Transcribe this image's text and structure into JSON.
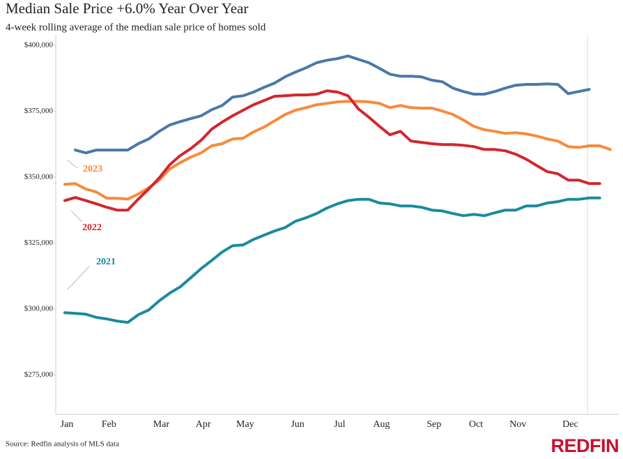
{
  "chart_data": {
    "type": "line",
    "title": "Median Sale Price +6.0% Year Over Year",
    "subtitle": "4-week rolling average of the median sale price of homes sold",
    "source": "Source: Redfin analysis of MLS data",
    "brand": "REDFIN",
    "categories": [
      "Jan",
      null,
      null,
      null,
      "Feb",
      null,
      null,
      null,
      null,
      "Mar",
      null,
      null,
      null,
      "Apr",
      null,
      null,
      null,
      "May",
      null,
      null,
      null,
      null,
      "Jun",
      null,
      null,
      null,
      "Jul",
      null,
      null,
      null,
      "Aug",
      null,
      null,
      null,
      null,
      "Sep",
      null,
      null,
      null,
      "Oct",
      null,
      null,
      null,
      "Nov",
      null,
      null,
      null,
      null,
      "Dec",
      null,
      null,
      null,
      null
    ],
    "ylim": [
      260000,
      404000
    ],
    "yticks": [
      {
        "value": 275000,
        "label": "$275,000"
      },
      {
        "value": 300000,
        "label": "$300,000"
      },
      {
        "value": 325000,
        "label": "$325,000"
      },
      {
        "value": 350000,
        "label": "$350,000"
      },
      {
        "value": 375000,
        "label": "$375,000"
      },
      {
        "value": 400000,
        "label": "$400,000"
      }
    ],
    "grid": false,
    "series": [
      {
        "color": "#4a78a8",
        "values": [
          null,
          360300,
          359200,
          360300,
          360300,
          360300,
          360300,
          362700,
          364500,
          367400,
          369800,
          371100,
          372200,
          373300,
          375600,
          377200,
          380400,
          380900,
          382300,
          384100,
          385700,
          388100,
          389900,
          391500,
          393400,
          394400,
          395000,
          396000,
          394700,
          393400,
          391300,
          389100,
          388300,
          388300,
          388100,
          386800,
          386200,
          383800,
          382500,
          381500,
          381500,
          382500,
          383800,
          384900,
          385200,
          385200,
          385400,
          385200,
          381700,
          382500,
          383300,
          null,
          null
        ]
      },
      {
        "name": "2023",
        "color": "#f78a3c",
        "values": [
          347300,
          347600,
          345500,
          344400,
          342000,
          342000,
          341700,
          343600,
          346000,
          348900,
          353100,
          355500,
          357600,
          359200,
          361900,
          362700,
          364500,
          364800,
          367200,
          369000,
          371400,
          373800,
          375400,
          376400,
          377500,
          378000,
          378600,
          378800,
          378800,
          378600,
          378000,
          376400,
          377200,
          376400,
          376200,
          376200,
          375100,
          373800,
          371700,
          369300,
          368000,
          367400,
          366600,
          366900,
          366400,
          365600,
          364500,
          363700,
          361600,
          361300,
          361900,
          361900,
          360500
        ]
      },
      {
        "name": "2022",
        "color": "#d32630",
        "values": [
          341100,
          342300,
          341100,
          339900,
          338600,
          337500,
          337500,
          341700,
          345500,
          349700,
          354700,
          358200,
          360800,
          364000,
          368200,
          370900,
          373300,
          375400,
          377500,
          379100,
          380700,
          380900,
          381200,
          381200,
          381500,
          382800,
          382300,
          380900,
          375900,
          372700,
          369300,
          366100,
          367400,
          363700,
          363200,
          362700,
          362400,
          362400,
          362100,
          361600,
          360500,
          360500,
          360000,
          358700,
          356800,
          354400,
          352100,
          351300,
          348900,
          348900,
          347600,
          347600,
          null
        ]
      },
      {
        "name": "2021",
        "color": "#1a8a9e",
        "values": [
          298600,
          298300,
          298000,
          296800,
          296200,
          295400,
          294900,
          297800,
          299600,
          303100,
          306000,
          308400,
          311800,
          315300,
          318400,
          321600,
          324000,
          324300,
          326400,
          328000,
          329600,
          330900,
          333300,
          334600,
          336200,
          338300,
          339900,
          341100,
          341600,
          341600,
          340200,
          339900,
          339100,
          339100,
          338600,
          337500,
          337200,
          336200,
          335400,
          335900,
          335400,
          336500,
          337500,
          337500,
          339100,
          339100,
          340200,
          340700,
          341600,
          341600,
          342100,
          342100,
          null
        ]
      }
    ]
  }
}
